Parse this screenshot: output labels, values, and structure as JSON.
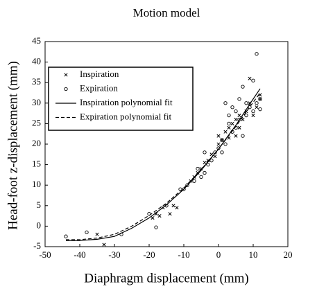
{
  "chart_data": {
    "type": "scatter",
    "title": "Motion model",
    "x_label": "Diaphragm displacement (mm)",
    "y_label": "Head-foot z-displacement (mm)",
    "xlim": [
      -50,
      20
    ],
    "ylim": [
      -5,
      45
    ],
    "xticks": [
      -50,
      -40,
      -30,
      -20,
      -10,
      0,
      10,
      20
    ],
    "yticks": [
      -5,
      0,
      5,
      10,
      15,
      20,
      25,
      30,
      35,
      40,
      45
    ],
    "legend": "upper left",
    "series": [
      {
        "name": "Inspiration",
        "marker": "x",
        "color": "#000000",
        "x": [
          -35,
          -33,
          -19,
          -18,
          -17,
          -16,
          -14,
          -13,
          -12,
          -8,
          -7,
          -6,
          -5,
          -4,
          -3,
          -2,
          -1,
          0,
          0,
          1,
          2,
          3,
          3,
          4,
          5,
          5,
          6,
          6,
          7,
          8,
          9,
          9,
          10,
          11,
          12,
          12
        ],
        "values": [
          -2,
          -4.5,
          2,
          3,
          2.5,
          4.5,
          3,
          5,
          4.5,
          11,
          12,
          13,
          14,
          15.5,
          16,
          17.5,
          17,
          20,
          22,
          21,
          23,
          24,
          21.5,
          25,
          22,
          26,
          27,
          24,
          26,
          28,
          36,
          30,
          27,
          29,
          32,
          31
        ]
      },
      {
        "name": "Expiration",
        "marker": "circle",
        "color": "#000000",
        "x": [
          -44,
          -38,
          -28,
          -20,
          -18,
          -15,
          -11,
          -10,
          -9,
          -7,
          -6,
          -5,
          -4,
          -4,
          -3,
          -2,
          -1,
          0,
          1,
          1,
          2,
          2,
          3,
          3,
          4,
          4,
          5,
          5,
          6,
          6,
          7,
          7,
          8,
          8,
          9,
          10,
          10,
          11,
          11,
          12,
          12
        ],
        "values": [
          -2.5,
          -1.5,
          -2,
          3,
          -0.3,
          5,
          9,
          9,
          10,
          11,
          14,
          12,
          13,
          18,
          15,
          16,
          18,
          19,
          18,
          21,
          20,
          30,
          25,
          27,
          23,
          29,
          28,
          24,
          26,
          31,
          22,
          34,
          27,
          30,
          29,
          28,
          35.5,
          42,
          30,
          28.5,
          31
        ]
      },
      {
        "name": "Inspiration polynomial fit",
        "line": "solid",
        "color": "#000000",
        "x": [
          -44,
          -40,
          -35,
          -30,
          -25,
          -20,
          -15,
          -10,
          -5,
          0,
          5,
          10,
          12
        ],
        "values": [
          -3.5,
          -3.5,
          -3.2,
          -2.5,
          -0.5,
          2,
          5.2,
          9,
          13.6,
          18.8,
          24.6,
          31,
          33.5
        ]
      },
      {
        "name": "Expiration polynomial fit",
        "line": "dashed",
        "color": "#000000",
        "x": [
          -44,
          -40,
          -35,
          -30,
          -25,
          -20,
          -15,
          -10,
          -5,
          0,
          5,
          10,
          12
        ],
        "values": [
          -3.3,
          -3.3,
          -2.9,
          -2,
          0,
          2.6,
          5.6,
          9.3,
          13.8,
          18.8,
          24.3,
          30.2,
          32.5
        ]
      }
    ]
  }
}
